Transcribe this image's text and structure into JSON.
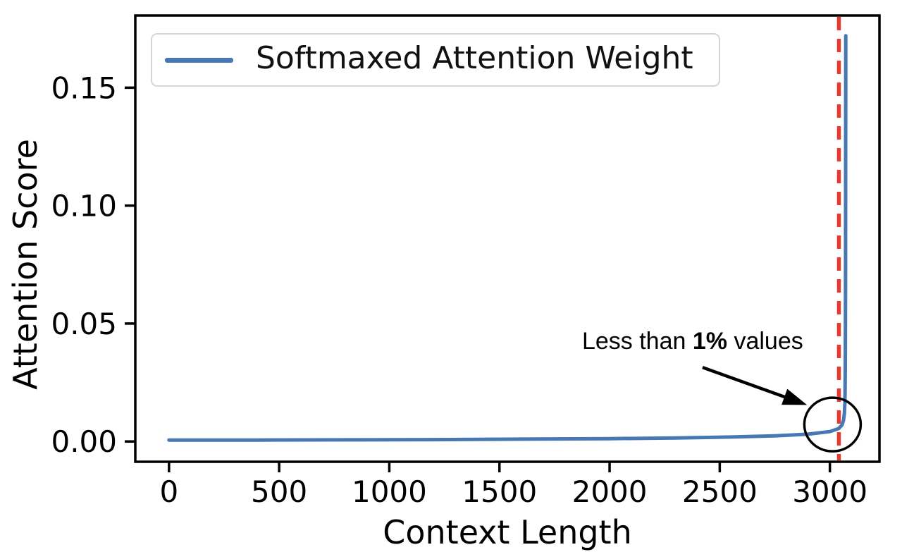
{
  "chart_data": {
    "type": "line",
    "title": "",
    "xlabel": "Context Length",
    "ylabel": "Attention Score",
    "xlim": [
      -153,
      3225
    ],
    "ylim": [
      -0.0086,
      0.1806
    ],
    "grid": false,
    "xticks": {
      "values": [
        0,
        500,
        1000,
        1500,
        2000,
        2500,
        3000
      ],
      "labels": [
        "0",
        "500",
        "1000",
        "1500",
        "2000",
        "2500",
        "3000"
      ]
    },
    "yticks": {
      "values": [
        0.0,
        0.05,
        0.1,
        0.15
      ],
      "labels": [
        "0.00",
        "0.05",
        "0.10",
        "0.15"
      ]
    },
    "legend": {
      "position": "upper left",
      "entries": [
        {
          "label": "Softmaxed Attention Weight",
          "color": "#4878B4"
        }
      ]
    },
    "series": [
      {
        "name": "Softmaxed Attention Weight",
        "color": "#4878B4",
        "line_width": 5,
        "points": [
          [
            0,
            0.0006
          ],
          [
            400,
            0.0006
          ],
          [
            800,
            0.0007
          ],
          [
            1200,
            0.0008
          ],
          [
            1600,
            0.001
          ],
          [
            2000,
            0.0012
          ],
          [
            2300,
            0.0015
          ],
          [
            2550,
            0.0019
          ],
          [
            2750,
            0.0024
          ],
          [
            2900,
            0.0031
          ],
          [
            3000,
            0.0042
          ],
          [
            3040,
            0.0055
          ],
          [
            3055,
            0.007
          ],
          [
            3062,
            0.009
          ],
          [
            3066,
            0.012
          ],
          [
            3068,
            0.016
          ],
          [
            3069,
            0.021
          ],
          [
            3070,
            0.032
          ],
          [
            3070.5,
            0.048
          ],
          [
            3071,
            0.075
          ],
          [
            3071.4,
            0.11
          ],
          [
            3071.7,
            0.14
          ],
          [
            3072,
            0.172
          ]
        ]
      }
    ],
    "reference_line": {
      "orientation": "vertical",
      "x": 3041,
      "color": "#E8392E",
      "style": "dashed",
      "line_width": 5.5
    },
    "annotations": {
      "callout": {
        "text_prefix": "Less than ",
        "text_bold": "1%",
        "text_suffix": " values",
        "text_pos_data": [
          1875,
          0.0424
        ],
        "arrow_start_data": [
          2422,
          0.0314
        ],
        "arrow_tip_data": [
          2896,
          0.0155
        ],
        "circle_center_data": [
          3012,
          0.0072
        ],
        "circle_radius_px": [
          40,
          38
        ],
        "color": "#000000"
      }
    }
  },
  "colors": {
    "background": "#FFFFFF",
    "axis": "#000000",
    "tick_text": "#000000",
    "legend_border": "#D5D5D5"
  }
}
